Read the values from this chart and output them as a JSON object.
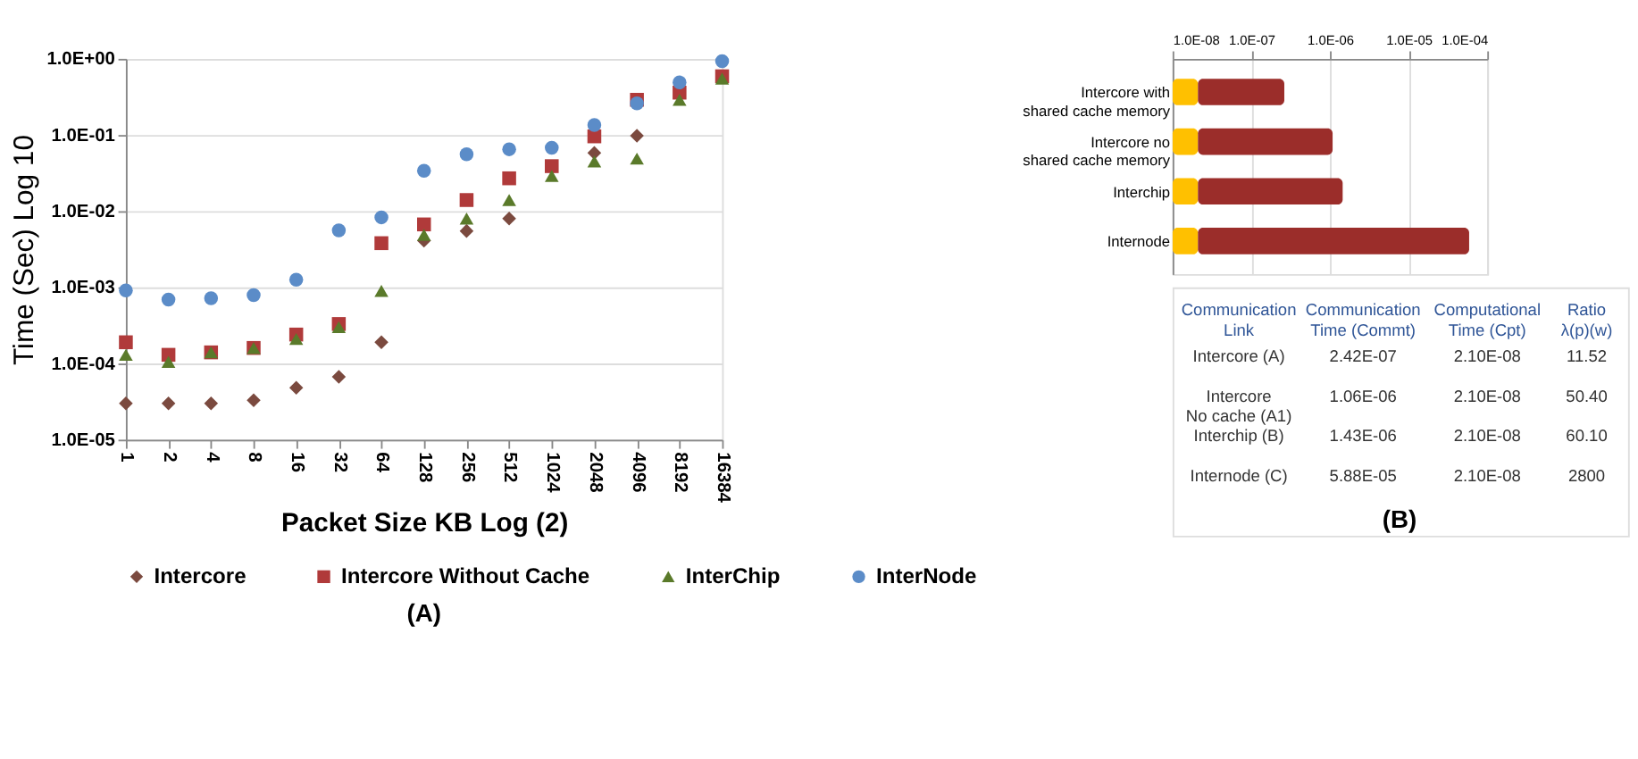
{
  "chart_data": [
    {
      "type": "scatter",
      "xlabel": "Packet Size KB Log (2)",
      "ylabel": "Time  (Sec) Log 10",
      "log": "y",
      "grid": "y",
      "legend": "bottom",
      "annotations": [
        "(A)"
      ],
      "categories": [
        "1",
        "2",
        "4",
        "8",
        "16",
        "32",
        "64",
        "128",
        "256",
        "512",
        "1024",
        "2048",
        "4096",
        "8192",
        "16384"
      ],
      "ylim": [
        1e-05,
        1
      ],
      "yticks": [
        {
          "value": 1e-05,
          "label": "1.0E-05"
        },
        {
          "value": 0.0001,
          "label": "1.0E-04"
        },
        {
          "value": 0.001,
          "label": "1.0E-03"
        },
        {
          "value": 0.01,
          "label": "1.0E-02"
        },
        {
          "value": 0.1,
          "label": "1.0E-01"
        },
        {
          "value": 1,
          "label": "1.0E+00"
        }
      ],
      "series": [
        {
          "name": "Intercore",
          "color": "#7b4a3f",
          "marker": "diamond",
          "values": [
            3e-05,
            3e-05,
            3e-05,
            3.3e-05,
            4.8e-05,
            6.7e-05,
            0.00019,
            0.0041,
            0.0055,
            0.008,
            null,
            0.058,
            0.098,
            null,
            null
          ]
        },
        {
          "name": "Intercore Without Cache",
          "color": "#b03a3a",
          "marker": "square",
          "values": [
            0.00019,
            0.00013,
            0.00014,
            0.00016,
            0.00024,
            0.00033,
            0.0038,
            0.0067,
            0.014,
            0.027,
            0.039,
            0.096,
            0.29,
            0.36,
            0.59
          ]
        },
        {
          "name": "InterChip",
          "color": "#5a7a2a",
          "marker": "triangle",
          "values": [
            0.00013,
            0.000105,
            0.00014,
            0.00016,
            0.00021,
            0.0003,
            0.0009,
            0.0049,
            0.008,
            0.014,
            0.029,
            0.045,
            0.049,
            0.29,
            0.55
          ]
        },
        {
          "name": "InterNode",
          "color": "#5b8cc8",
          "marker": "circle",
          "values": [
            0.00091,
            0.00069,
            0.00072,
            0.00079,
            0.00126,
            0.0056,
            0.0083,
            0.034,
            0.056,
            0.065,
            0.068,
            0.135,
            0.26,
            0.49,
            0.93
          ]
        }
      ]
    },
    {
      "type": "bar",
      "orientation": "horizontal",
      "log": "x",
      "grid": "x",
      "stacked": true,
      "categories": [
        "Intercore with\nshared cache memory",
        "Intercore no\nshared cache memory",
        "Interchip",
        "Internode"
      ],
      "xlim": [
        1e-08,
        0.0001
      ],
      "xticks": [
        {
          "value": 1e-08,
          "label": "1.0E-08"
        },
        {
          "value": 1e-07,
          "label": "1.0E-07"
        },
        {
          "value": 1e-06,
          "label": "1.0E-06"
        },
        {
          "value": 1e-05,
          "label": "1.0E-05"
        },
        {
          "value": 0.0001,
          "label": "1.0E-04"
        }
      ],
      "series": [
        {
          "color": "#ffc000",
          "values": [
            2.1e-08,
            2.1e-08,
            2.1e-08,
            2.1e-08
          ]
        },
        {
          "color": "#9b2d2a",
          "values": [
            2.42e-07,
            1.06e-06,
            1.43e-06,
            5.88e-05
          ]
        }
      ]
    },
    {
      "type": "other",
      "annotations": [
        "Communication\nLink",
        "Communication\nTime (Commt)",
        "Computational\nTime (Cpt)",
        "Ratio\nλ(p)(w)",
        "Intercore (A)",
        "2.42E-07",
        "2.10E-08",
        "11.52",
        "Intercore\nNo cache (A1)",
        "1.06E-06",
        "2.10E-08",
        "50.40",
        "Interchip (B)",
        "1.43E-06",
        "2.10E-08",
        "60.10",
        "Internode (C)",
        "5.88E-05",
        "2.10E-08",
        "2800",
        "(B)"
      ]
    }
  ]
}
